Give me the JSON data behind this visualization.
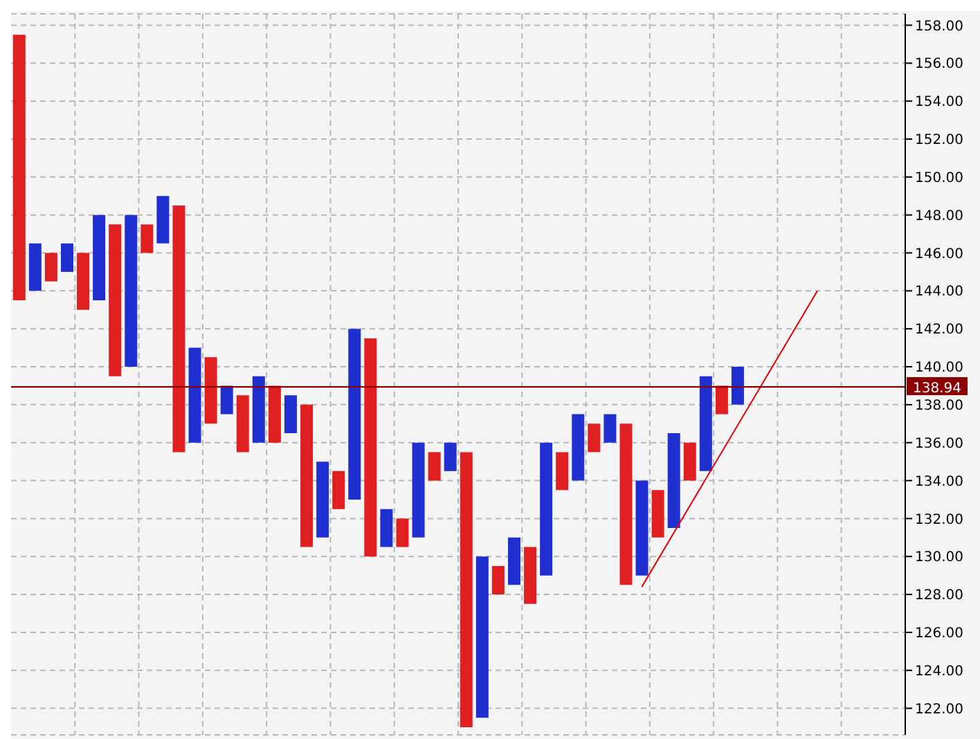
{
  "chart_data": {
    "type": "bar",
    "categories": [
      null,
      null,
      null,
      null,
      null,
      null,
      null,
      null,
      null,
      null,
      null,
      null,
      null,
      null,
      null,
      null,
      null,
      null,
      null,
      null,
      null,
      null,
      null,
      null,
      null,
      null,
      null,
      null,
      null,
      null,
      null,
      null,
      null,
      null,
      null,
      null,
      null,
      null,
      null,
      null,
      null,
      null,
      null,
      null,
      null,
      null,
      null,
      null,
      null,
      null,
      null,
      null,
      null,
      null,
      null,
      null
    ],
    "series": [
      {
        "base": [
          143.5,
          144,
          144.5,
          145,
          143,
          143.5,
          139.5,
          140,
          146,
          146.5,
          135.5,
          136,
          137,
          137.5,
          135.5,
          136,
          136,
          136.5,
          130.5,
          131,
          132.5,
          133,
          130,
          130.5,
          130.5,
          131,
          134,
          134.5,
          121,
          121.5,
          128,
          128.5,
          127.5,
          129,
          133.5,
          134,
          135.5,
          136,
          128.5,
          129,
          131,
          131.5,
          134,
          134.5,
          137.5,
          138,
          null,
          null,
          null,
          null,
          null,
          null,
          null,
          null,
          null,
          null
        ],
        "values": [
          14,
          2.5,
          1.5,
          1.5,
          3,
          4.5,
          8,
          8,
          1.5,
          2.5,
          13,
          5,
          3.5,
          1.5,
          3,
          3.5,
          3,
          2,
          7.5,
          4,
          2,
          9,
          11.5,
          2,
          1.5,
          5,
          1.5,
          1.5,
          14.5,
          8.5,
          1.5,
          2.5,
          3,
          7,
          2,
          3.5,
          1.5,
          1.5,
          8.5,
          5,
          2.5,
          5,
          2,
          5,
          1.5,
          2,
          null,
          null,
          null,
          null,
          null,
          null,
          null,
          null,
          null,
          null
        ],
        "colors": [
          "#e02020",
          "#2030d0",
          "#e02020",
          "#2030d0",
          "#e02020",
          "#2030d0",
          "#e02020",
          "#2030d0",
          "#e02020",
          "#2030d0",
          "#e02020",
          "#2030d0",
          "#e02020",
          "#2030d0",
          "#e02020",
          "#2030d0",
          "#e02020",
          "#2030d0",
          "#e02020",
          "#2030d0",
          "#e02020",
          "#2030d0",
          "#e02020",
          "#2030d0",
          "#e02020",
          "#2030d0",
          "#e02020",
          "#2030d0",
          "#e02020",
          "#2030d0",
          "#e02020",
          "#2030d0",
          "#e02020",
          "#2030d0",
          "#e02020",
          "#2030d0",
          "#e02020",
          "#2030d0",
          "#e02020",
          "#2030d0",
          "#e02020",
          "#2030d0",
          "#e02020",
          "#2030d0",
          "#e02020",
          "#2030d0",
          "#e02020",
          "#2030d0",
          "#e02020",
          "#2030d0",
          "#e02020",
          "#2030d0",
          "#e02020",
          "#2030d0",
          "#e02020",
          "#2030d0"
        ]
      },
      {
        "type": "line",
        "color": "#e00000",
        "values": [
          null,
          null,
          null,
          null,
          null,
          null,
          null,
          null,
          null,
          null,
          null,
          null,
          null,
          null,
          null,
          null,
          null,
          null,
          null,
          null,
          null,
          null,
          null,
          null,
          null,
          null,
          null,
          null,
          null,
          null,
          null,
          null,
          null,
          null,
          null,
          null,
          null,
          null,
          null,
          128.4,
          null,
          null,
          null,
          null,
          null,
          null,
          null,
          null,
          null,
          null,
          144,
          null,
          null,
          null,
          null,
          null
        ]
      }
    ],
    "ylim": [
      120.6,
      158.6
    ],
    "yticks": [
      {
        "value": 122,
        "label": "122.00"
      },
      {
        "value": 124,
        "label": "124.00"
      },
      {
        "value": 126,
        "label": "126.00"
      },
      {
        "value": 128,
        "label": "128.00"
      },
      {
        "value": 130,
        "label": "130.00"
      },
      {
        "value": 132,
        "label": "132.00"
      },
      {
        "value": 134,
        "label": "134.00"
      },
      {
        "value": 136,
        "label": "136.00"
      },
      {
        "value": 138,
        "label": "138.00"
      },
      {
        "value": 140,
        "label": "140.00"
      },
      {
        "value": 142,
        "label": "142.00"
      },
      {
        "value": 144,
        "label": "144.00"
      },
      {
        "value": 146,
        "label": "146.00"
      },
      {
        "value": 148,
        "label": "148.00"
      },
      {
        "value": 150,
        "label": "150.00"
      },
      {
        "value": 152,
        "label": "152.00"
      },
      {
        "value": 154,
        "label": "154.00"
      },
      {
        "value": 156,
        "label": "156.00"
      },
      {
        "value": 158,
        "label": "158.00"
      }
    ],
    "ref_lines": [
      {
        "axis": "y",
        "value": 138.94,
        "label": "138.94",
        "color": "#8b0000"
      }
    ],
    "grid": true,
    "tick_labels": "y"
  }
}
